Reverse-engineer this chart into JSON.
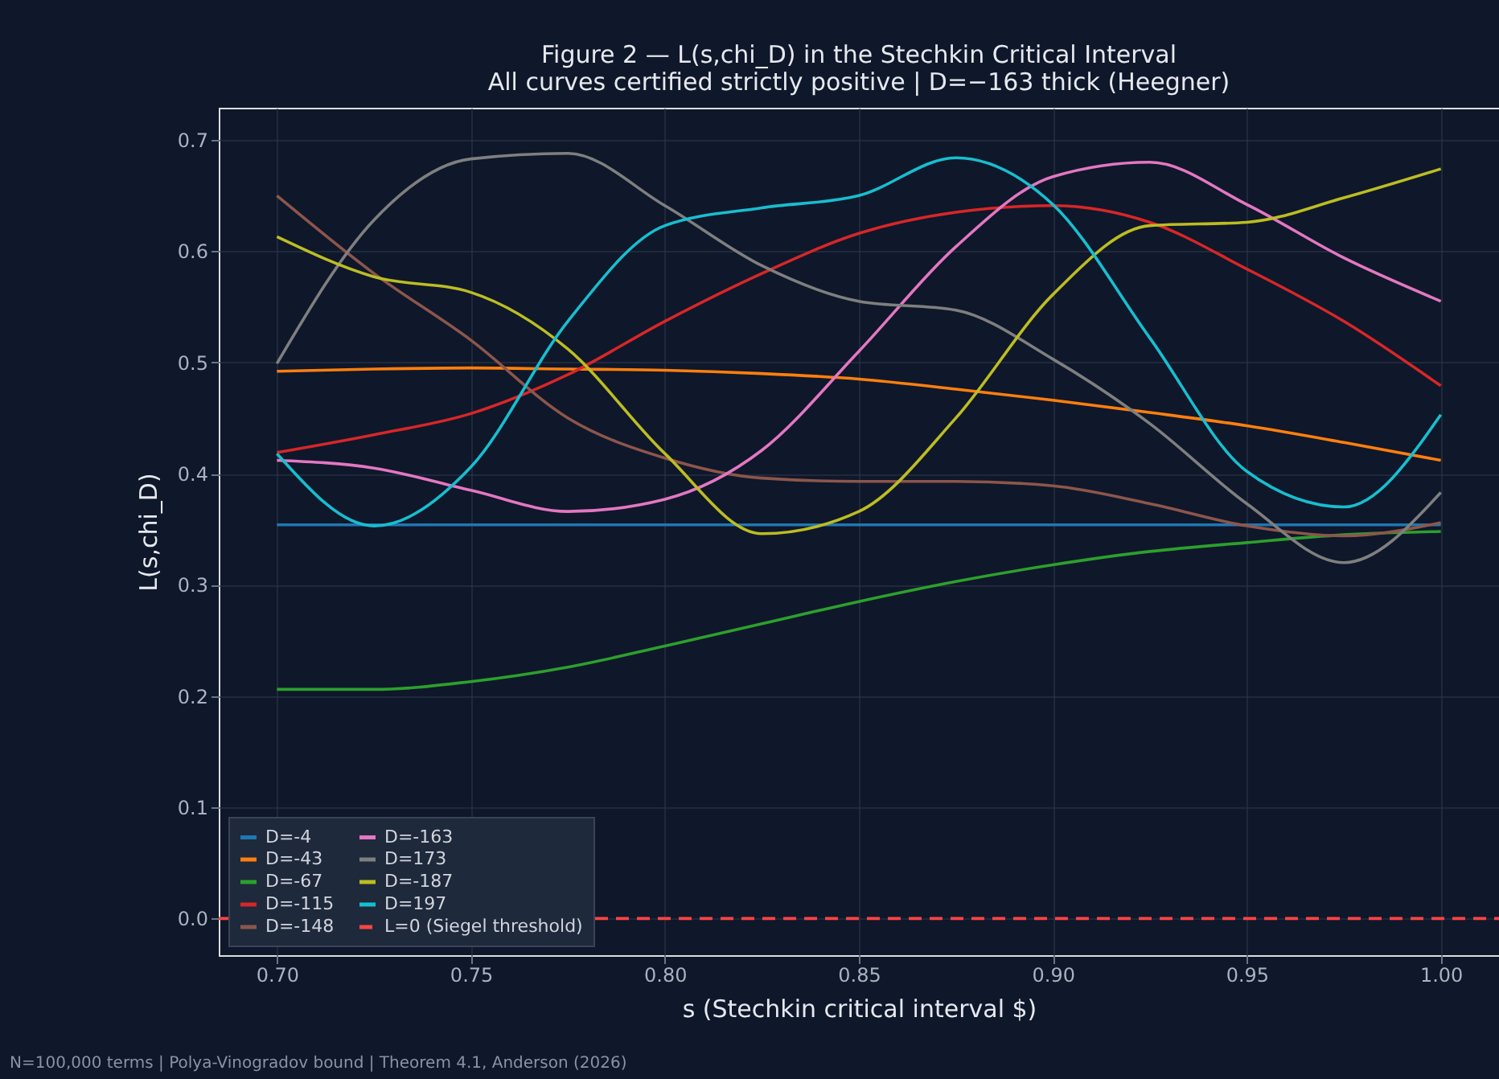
{
  "chart_data": {
    "type": "line",
    "title": "Figure 2 — L(s,chi_D) in the Stechkin Critical Interval",
    "subtitle": "All curves certified strictly positive | D=−163 thick (Heegner)",
    "xlabel": "s (Stechkin critical interval $)",
    "ylabel": "L(s,chi_D)",
    "x": [
      0.7,
      0.725,
      0.75,
      0.775,
      0.8,
      0.825,
      0.85,
      0.875,
      0.9,
      0.925,
      0.95,
      0.975,
      1.0
    ],
    "series": [
      {
        "name": "D=-4",
        "color": "#1f77b4",
        "values": [
          0.354,
          0.354,
          0.354,
          0.354,
          0.354,
          0.354,
          0.354,
          0.354,
          0.354,
          0.354,
          0.354,
          0.354,
          0.354
        ]
      },
      {
        "name": "D=-43",
        "color": "#ff7f0e",
        "values": [
          0.492,
          0.494,
          0.495,
          0.494,
          0.493,
          0.49,
          0.485,
          0.476,
          0.466,
          0.455,
          0.443,
          0.428,
          0.412
        ]
      },
      {
        "name": "D=-67",
        "color": "#2ca02c",
        "values": [
          0.206,
          0.206,
          0.213,
          0.226,
          0.245,
          0.265,
          0.285,
          0.303,
          0.318,
          0.33,
          0.338,
          0.345,
          0.348
        ]
      },
      {
        "name": "D=-115",
        "color": "#d62728",
        "values": [
          0.419,
          0.435,
          0.454,
          0.489,
          0.537,
          0.58,
          0.616,
          0.635,
          0.641,
          0.626,
          0.584,
          0.537,
          0.479
        ]
      },
      {
        "name": "D=-148",
        "color": "#8c564b",
        "values": [
          0.65,
          0.58,
          0.52,
          0.45,
          0.414,
          0.396,
          0.393,
          0.393,
          0.389,
          0.373,
          0.353,
          0.344,
          0.356
        ]
      },
      {
        "name": "D=-163",
        "color": "#e377c2",
        "values": [
          0.412,
          0.405,
          0.385,
          0.366,
          0.377,
          0.421,
          0.51,
          0.604,
          0.667,
          0.68,
          0.642,
          0.594,
          0.555
        ]
      },
      {
        "name": "D=173",
        "color": "#7f7f7f",
        "values": [
          0.499,
          0.628,
          0.683,
          0.688,
          0.641,
          0.587,
          0.555,
          0.547,
          0.503,
          0.445,
          0.373,
          0.32,
          0.383
        ]
      },
      {
        "name": "D=-187",
        "color": "#bcbd22",
        "values": [
          0.613,
          0.577,
          0.563,
          0.512,
          0.418,
          0.346,
          0.366,
          0.45,
          0.561,
          0.623,
          0.626,
          0.648,
          0.674
        ]
      },
      {
        "name": "D=197",
        "color": "#17becf",
        "values": [
          0.418,
          0.353,
          0.406,
          0.537,
          0.623,
          0.639,
          0.65,
          0.684,
          0.642,
          0.522,
          0.402,
          0.37,
          0.453
        ]
      }
    ],
    "ref_lines": [
      {
        "axis": "y",
        "value": 0,
        "label": "L=0 (Siegel threshold)",
        "color": "#ff4444",
        "line_style": "dashed"
      }
    ],
    "xlim": [
      0.685,
      1.015
    ],
    "xticks": [
      {
        "value": 0.7,
        "label": "0.70"
      },
      {
        "value": 0.75,
        "label": "0.75"
      },
      {
        "value": 0.8,
        "label": "0.80"
      },
      {
        "value": 0.85,
        "label": "0.85"
      },
      {
        "value": 0.9,
        "label": "0.90"
      },
      {
        "value": 0.95,
        "label": "0.95"
      },
      {
        "value": 1.0,
        "label": "1.00"
      }
    ],
    "ylim": [
      -0.033,
      0.729
    ],
    "yticks": [
      {
        "value": 0,
        "label": "0.0"
      },
      {
        "value": 0.1,
        "label": "0.1"
      },
      {
        "value": 0.2,
        "label": "0.2"
      },
      {
        "value": 0.3,
        "label": "0.3"
      },
      {
        "value": 0.4,
        "label": "0.4"
      },
      {
        "value": 0.5,
        "label": "0.5"
      },
      {
        "value": 0.6,
        "label": "0.6"
      },
      {
        "value": 0.7,
        "label": "0.7"
      }
    ],
    "grid": true,
    "legend": "bottom left",
    "marker": "none",
    "line_style": "solid",
    "annotations": [
      "N=100,000 terms | Polya-Vinogradov bound | Theorem 4.1, Anderson (2026)"
    ]
  }
}
